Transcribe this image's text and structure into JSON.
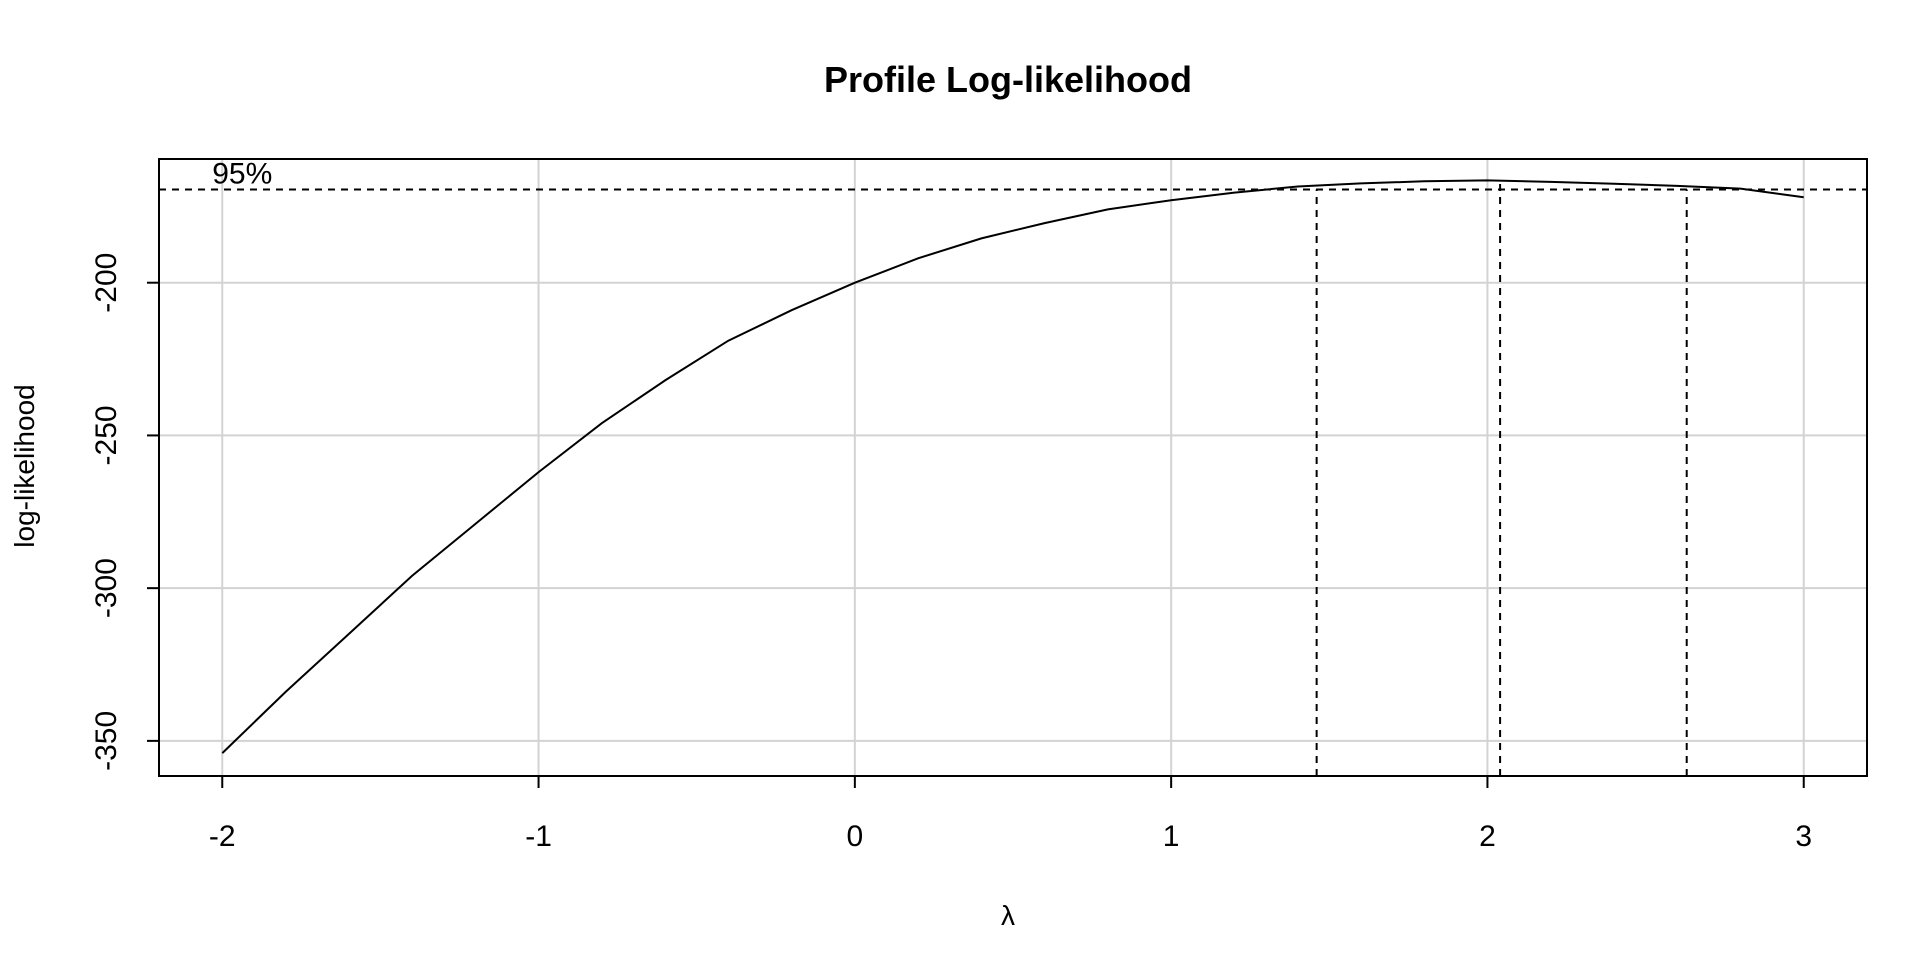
{
  "chart_data": {
    "type": "line",
    "title": "Profile Log-likelihood",
    "xlabel": "λ",
    "ylabel": "log-likelihood",
    "xlim": [
      -2.2,
      3.2
    ],
    "ylim": [
      -361.5,
      -159.5
    ],
    "xticks": [
      -2,
      -1,
      0,
      1,
      2,
      3
    ],
    "yticks": [
      -200,
      -250,
      -300,
      -350
    ],
    "grid": true,
    "series": [
      {
        "x": [
          -2.0,
          -1.8,
          -1.6,
          -1.4,
          -1.2,
          -1.0,
          -0.8,
          -0.6,
          -0.4,
          -0.2,
          0.0,
          0.2,
          0.4,
          0.6,
          0.8,
          1.0,
          1.2,
          1.4,
          1.6,
          1.8,
          2.0,
          2.2,
          2.4,
          2.6,
          2.8,
          3.0
        ],
        "y": [
          -354,
          -334,
          -315,
          -296,
          -279,
          -262,
          -246,
          -232,
          -219,
          -209,
          -200,
          -192,
          -185.5,
          -180.5,
          -176,
          -173,
          -170.5,
          -168.5,
          -167.5,
          -166.8,
          -166.5,
          -167,
          -167.6,
          -168.3,
          -169.2,
          -172
        ]
      }
    ],
    "hlines": [
      {
        "y": -169.5
      }
    ],
    "vlines": [
      {
        "x": 1.46,
        "y_bottom": -361.5,
        "y_top": -169.5
      },
      {
        "x": 2.04,
        "y_bottom": -361.5,
        "y_top": -166.5
      },
      {
        "x": 2.63,
        "y_bottom": -361.5,
        "y_top": -169.5
      }
    ],
    "annotations": [
      {
        "text": "95%",
        "x": -2.0
      }
    ]
  }
}
